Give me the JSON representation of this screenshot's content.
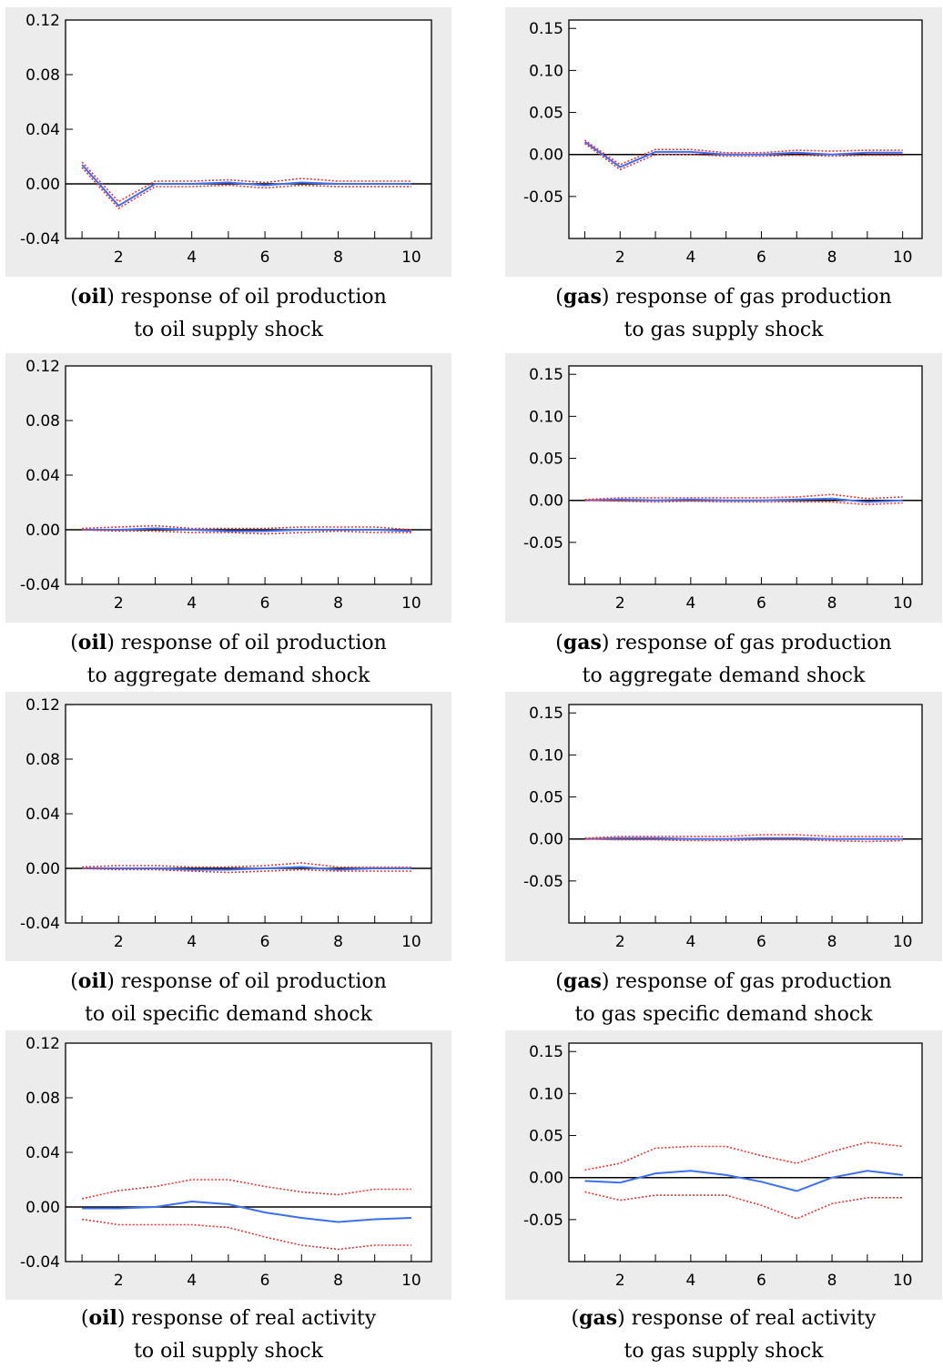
{
  "colors": {
    "response": "#3c6ff0",
    "band": "#ee3333",
    "zero": "#000000",
    "frame_bg": "#ececec",
    "plot_bg": "#ffffff"
  },
  "chart_data": [
    {
      "type": "line",
      "caption": {
        "tag": "oil",
        "rest": "response of oil production",
        "line2": "to oil supply shock"
      },
      "x": [
        1,
        2,
        3,
        4,
        5,
        6,
        7,
        8,
        9,
        10
      ],
      "xticks": [
        2,
        4,
        6,
        8,
        10
      ],
      "ylim": [
        -0.04,
        0.12
      ],
      "yticks": [
        "0.12",
        "0.08",
        "0.04",
        "0.00",
        "-0.04"
      ],
      "series": [
        {
          "role": "response",
          "values": [
            0.014,
            -0.016,
            0.0,
            0.0,
            0.001,
            -0.001,
            0.001,
            0.0,
            0.0,
            0.0
          ]
        },
        {
          "role": "upper",
          "values": [
            0.016,
            -0.013,
            0.002,
            0.002,
            0.003,
            0.001,
            0.004,
            0.002,
            0.002,
            0.002
          ]
        },
        {
          "role": "lower",
          "values": [
            0.012,
            -0.018,
            -0.002,
            -0.002,
            -0.001,
            -0.003,
            -0.001,
            -0.002,
            -0.002,
            -0.002
          ]
        }
      ]
    },
    {
      "type": "line",
      "caption": {
        "tag": "gas",
        "rest": "response of gas production",
        "line2": "to gas supply shock"
      },
      "x": [
        1,
        2,
        3,
        4,
        5,
        6,
        7,
        8,
        9,
        10
      ],
      "xticks": [
        2,
        4,
        6,
        8,
        10
      ],
      "ylim": [
        -0.1,
        0.16
      ],
      "yticks": [
        "0.15",
        "0.10",
        "0.05",
        "0.00",
        "-0.05"
      ],
      "series": [
        {
          "role": "response",
          "values": [
            0.015,
            -0.015,
            0.003,
            0.003,
            0.0,
            0.0,
            0.002,
            0.0,
            0.002,
            0.002
          ]
        },
        {
          "role": "upper",
          "values": [
            0.017,
            -0.012,
            0.006,
            0.006,
            0.002,
            0.002,
            0.005,
            0.004,
            0.005,
            0.005
          ]
        },
        {
          "role": "lower",
          "values": [
            0.013,
            -0.018,
            0.0,
            0.0,
            -0.002,
            -0.002,
            -0.001,
            -0.002,
            -0.001,
            -0.001
          ]
        }
      ]
    },
    {
      "type": "line",
      "caption": {
        "tag": "oil",
        "rest": "response of oil production",
        "line2": "to aggregate demand shock"
      },
      "x": [
        1,
        2,
        3,
        4,
        5,
        6,
        7,
        8,
        9,
        10
      ],
      "xticks": [
        2,
        4,
        6,
        8,
        10
      ],
      "ylim": [
        -0.04,
        0.12
      ],
      "yticks": [
        "0.12",
        "0.08",
        "0.04",
        "0.00",
        "-0.04"
      ],
      "series": [
        {
          "role": "response",
          "values": [
            0.0,
            0.0,
            0.001,
            0.0,
            -0.001,
            -0.001,
            0.0,
            0.0,
            0.0,
            -0.001
          ]
        },
        {
          "role": "upper",
          "values": [
            0.001,
            0.002,
            0.003,
            0.001,
            0.001,
            0.001,
            0.002,
            0.002,
            0.002,
            0.0
          ]
        },
        {
          "role": "lower",
          "values": [
            0.0,
            -0.001,
            -0.001,
            -0.002,
            -0.002,
            -0.003,
            -0.002,
            -0.001,
            -0.002,
            -0.002
          ]
        }
      ]
    },
    {
      "type": "line",
      "caption": {
        "tag": "gas",
        "rest": "response of gas production",
        "line2": "to aggregate demand shock"
      },
      "x": [
        1,
        2,
        3,
        4,
        5,
        6,
        7,
        8,
        9,
        10
      ],
      "xticks": [
        2,
        4,
        6,
        8,
        10
      ],
      "ylim": [
        -0.1,
        0.16
      ],
      "yticks": [
        "0.15",
        "0.10",
        "0.05",
        "0.00",
        "-0.05"
      ],
      "series": [
        {
          "role": "response",
          "values": [
            0.0,
            0.001,
            0.0,
            0.001,
            0.0,
            0.0,
            0.001,
            0.002,
            -0.002,
            0.0
          ]
        },
        {
          "role": "upper",
          "values": [
            0.001,
            0.003,
            0.003,
            0.003,
            0.003,
            0.003,
            0.004,
            0.007,
            0.002,
            0.004
          ]
        },
        {
          "role": "lower",
          "values": [
            0.0,
            -0.001,
            -0.002,
            -0.001,
            -0.002,
            -0.002,
            -0.002,
            -0.002,
            -0.005,
            -0.003
          ]
        }
      ]
    },
    {
      "type": "line",
      "caption": {
        "tag": "oil",
        "rest": "response of oil production",
        "line2": "to oil specific demand shock"
      },
      "x": [
        1,
        2,
        3,
        4,
        5,
        6,
        7,
        8,
        9,
        10
      ],
      "xticks": [
        2,
        4,
        6,
        8,
        10
      ],
      "ylim": [
        -0.04,
        0.12
      ],
      "yticks": [
        "0.12",
        "0.08",
        "0.04",
        "0.00",
        "-0.04"
      ],
      "series": [
        {
          "role": "response",
          "values": [
            0.0,
            0.0,
            0.0,
            -0.001,
            -0.001,
            0.0,
            0.001,
            -0.001,
            0.0,
            0.0
          ]
        },
        {
          "role": "upper",
          "values": [
            0.001,
            0.002,
            0.002,
            0.001,
            0.001,
            0.002,
            0.004,
            0.001,
            0.001,
            0.001
          ]
        },
        {
          "role": "lower",
          "values": [
            0.0,
            -0.001,
            -0.001,
            -0.002,
            -0.003,
            -0.002,
            -0.001,
            -0.002,
            -0.002,
            -0.002
          ]
        }
      ]
    },
    {
      "type": "line",
      "caption": {
        "tag": "gas",
        "rest": "response of gas production",
        "line2": "to gas specific demand shock"
      },
      "x": [
        1,
        2,
        3,
        4,
        5,
        6,
        7,
        8,
        9,
        10
      ],
      "xticks": [
        2,
        4,
        6,
        8,
        10
      ],
      "ylim": [
        -0.1,
        0.16
      ],
      "yticks": [
        "0.15",
        "0.10",
        "0.05",
        "0.00",
        "-0.05"
      ],
      "series": [
        {
          "role": "response",
          "values": [
            0.0,
            0.001,
            0.001,
            0.0,
            0.0,
            0.001,
            0.001,
            0.0,
            0.0,
            0.0
          ]
        },
        {
          "role": "upper",
          "values": [
            0.001,
            0.003,
            0.003,
            0.003,
            0.003,
            0.005,
            0.005,
            0.003,
            0.003,
            0.003
          ]
        },
        {
          "role": "lower",
          "values": [
            0.0,
            -0.001,
            -0.001,
            -0.002,
            -0.002,
            -0.001,
            -0.001,
            -0.002,
            -0.003,
            -0.002
          ]
        }
      ]
    },
    {
      "type": "line",
      "caption": {
        "tag": "oil",
        "rest": "response of real activity",
        "line2": "to oil supply shock"
      },
      "x": [
        1,
        2,
        3,
        4,
        5,
        6,
        7,
        8,
        9,
        10
      ],
      "xticks": [
        2,
        4,
        6,
        8,
        10
      ],
      "ylim": [
        -0.04,
        0.12
      ],
      "yticks": [
        "0.12",
        "0.08",
        "0.04",
        "0.00",
        "-0.04"
      ],
      "series": [
        {
          "role": "response",
          "values": [
            -0.001,
            -0.001,
            0.0,
            0.004,
            0.002,
            -0.004,
            -0.008,
            -0.011,
            -0.009,
            -0.008
          ]
        },
        {
          "role": "upper",
          "values": [
            0.006,
            0.012,
            0.015,
            0.02,
            0.02,
            0.015,
            0.011,
            0.009,
            0.013,
            0.013
          ]
        },
        {
          "role": "lower",
          "values": [
            -0.009,
            -0.013,
            -0.013,
            -0.013,
            -0.015,
            -0.022,
            -0.028,
            -0.031,
            -0.028,
            -0.028
          ]
        }
      ]
    },
    {
      "type": "line",
      "caption": {
        "tag": "gas",
        "rest": "response of real activity",
        "line2": "to gas supply shock"
      },
      "x": [
        1,
        2,
        3,
        4,
        5,
        6,
        7,
        8,
        9,
        10
      ],
      "xticks": [
        2,
        4,
        6,
        8,
        10
      ],
      "ylim": [
        -0.1,
        0.16
      ],
      "yticks": [
        "0.15",
        "0.10",
        "0.05",
        "0.00",
        "-0.05"
      ],
      "series": [
        {
          "role": "response",
          "values": [
            -0.004,
            -0.006,
            0.005,
            0.008,
            0.003,
            -0.005,
            -0.016,
            0.0,
            0.008,
            0.003
          ]
        },
        {
          "role": "upper",
          "values": [
            0.009,
            0.017,
            0.035,
            0.037,
            0.037,
            0.026,
            0.017,
            0.031,
            0.042,
            0.037
          ]
        },
        {
          "role": "lower",
          "values": [
            -0.017,
            -0.027,
            -0.021,
            -0.021,
            -0.021,
            -0.033,
            -0.049,
            -0.031,
            -0.024,
            -0.024
          ]
        }
      ]
    }
  ]
}
